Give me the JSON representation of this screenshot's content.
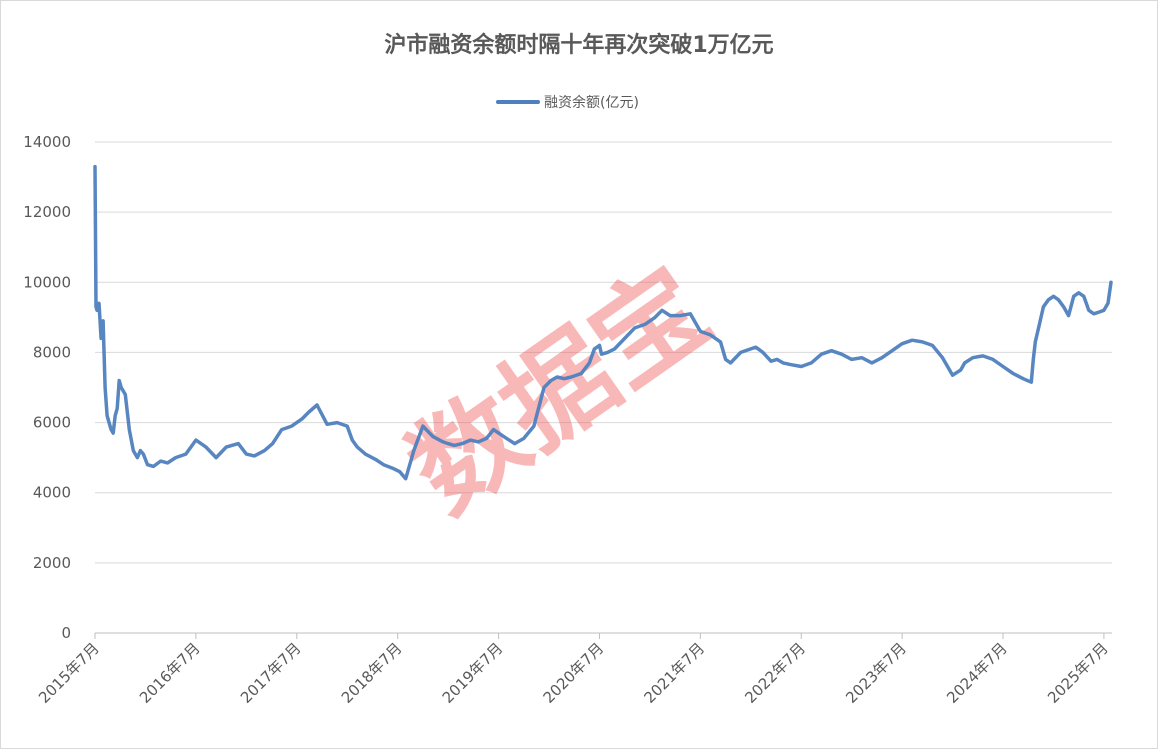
{
  "chart_data": {
    "type": "line",
    "title": "沪市融资余额时隔十年再次突破1万亿元",
    "ylim": [
      0,
      14000
    ],
    "yticks": [
      "0",
      "2000",
      "4000",
      "6000",
      "8000",
      "10000",
      "12000",
      "14000"
    ],
    "xticks": [
      "2015年7月",
      "2016年7月",
      "2017年7月",
      "2018年7月",
      "2019年7月",
      "2020年7月",
      "2021年7月",
      "2022年7月",
      "2023年7月",
      "2024年7月",
      "2025年7月"
    ],
    "xlim": [
      2015.5,
      2025.58
    ],
    "grid": true,
    "legend": "top-center",
    "series": [
      {
        "name": "融资余额(亿元)",
        "color": "#4e7fbe",
        "x": [
          2015.5,
          2015.51,
          2015.52,
          2015.54,
          2015.56,
          2015.58,
          2015.6,
          2015.62,
          2015.64,
          2015.66,
          2015.68,
          2015.7,
          2015.72,
          2015.74,
          2015.76,
          2015.8,
          2015.84,
          2015.88,
          2015.92,
          2015.95,
          2015.98,
          2016.02,
          2016.08,
          2016.15,
          2016.22,
          2016.3,
          2016.4,
          2016.5,
          2016.6,
          2016.7,
          2016.8,
          2016.92,
          2017.0,
          2017.08,
          2017.18,
          2017.26,
          2017.35,
          2017.45,
          2017.55,
          2017.62,
          2017.7,
          2017.8,
          2017.9,
          2018.0,
          2018.05,
          2018.1,
          2018.18,
          2018.28,
          2018.36,
          2018.45,
          2018.52,
          2018.58,
          2018.66,
          2018.75,
          2018.85,
          2018.95,
          2019.0,
          2019.06,
          2019.14,
          2019.22,
          2019.3,
          2019.38,
          2019.45,
          2019.5,
          2019.58,
          2019.66,
          2019.75,
          2019.85,
          2019.95,
          2020.02,
          2020.08,
          2020.15,
          2020.22,
          2020.32,
          2020.4,
          2020.45,
          2020.5,
          2020.52,
          2020.58,
          2020.65,
          2020.75,
          2020.85,
          2020.95,
          2021.05,
          2021.12,
          2021.2,
          2021.3,
          2021.4,
          2021.5,
          2021.6,
          2021.7,
          2021.75,
          2021.8,
          2021.9,
          2022.0,
          2022.05,
          2022.12,
          2022.2,
          2022.26,
          2022.32,
          2022.4,
          2022.5,
          2022.6,
          2022.7,
          2022.8,
          2022.9,
          2023.0,
          2023.1,
          2023.2,
          2023.3,
          2023.4,
          2023.5,
          2023.6,
          2023.7,
          2023.8,
          2023.9,
          2024.0,
          2024.08,
          2024.12,
          2024.2,
          2024.3,
          2024.4,
          2024.5,
          2024.6,
          2024.7,
          2024.78,
          2024.8,
          2024.82,
          2024.86,
          2024.9,
          2024.95,
          2025.0,
          2025.05,
          2025.1,
          2025.15,
          2025.2,
          2025.25,
          2025.3,
          2025.35,
          2025.4,
          2025.45,
          2025.5,
          2025.54,
          2025.57
        ],
        "values": [
          13300,
          9300,
          9200,
          9400,
          8400,
          8900,
          7000,
          6200,
          6000,
          5800,
          5700,
          6200,
          6400,
          7200,
          7000,
          6800,
          5800,
          5200,
          5000,
          5200,
          5100,
          4800,
          4750,
          4900,
          4850,
          5000,
          5100,
          5500,
          5300,
          5000,
          5300,
          5400,
          5100,
          5050,
          5200,
          5400,
          5800,
          5900,
          6100,
          6300,
          6500,
          5950,
          6000,
          5900,
          5500,
          5300,
          5100,
          4950,
          4800,
          4700,
          4600,
          4400,
          5200,
          5900,
          5600,
          5450,
          5400,
          5350,
          5400,
          5500,
          5450,
          5550,
          5800,
          5700,
          5550,
          5400,
          5550,
          5900,
          7000,
          7200,
          7300,
          7250,
          7300,
          7400,
          7700,
          8100,
          8200,
          7950,
          8000,
          8100,
          8400,
          8700,
          8800,
          9000,
          9200,
          9050,
          9050,
          9100,
          8600,
          8500,
          8300,
          7800,
          7700,
          8000,
          8100,
          8150,
          8000,
          7750,
          7800,
          7700,
          7650,
          7600,
          7700,
          7950,
          8050,
          7950,
          7800,
          7850,
          7700,
          7850,
          8050,
          8250,
          8350,
          8300,
          8200,
          7850,
          7350,
          7500,
          7700,
          7850,
          7900,
          7800,
          7600,
          7400,
          7250,
          7150,
          7800,
          8300,
          8800,
          9300,
          9500,
          9600,
          9500,
          9300,
          9050,
          9600,
          9700,
          9600,
          9200,
          9100,
          9150,
          9200,
          9400,
          10000
        ]
      }
    ]
  },
  "watermark_text": "数据宝"
}
